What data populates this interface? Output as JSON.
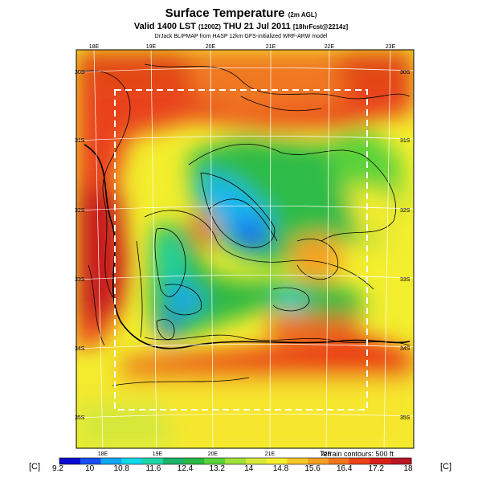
{
  "header": {
    "title": "Surface Temperature",
    "title_note": "(2m AGL)",
    "valid_main": "Valid 1400 LST",
    "valid_code": "(1200Z)",
    "valid_date": "THU 21 Jul 2011",
    "valid_fcst": "[18hrFcst@2214z]",
    "credit": "DrJack BLIPMAP from HASP 12km GFS-initialized WRF-ARW model"
  },
  "map": {
    "lon_labels_top": [
      "18E",
      "19E",
      "20E",
      "21E",
      "22E",
      "23E"
    ],
    "lon_labels_bottom": [
      "18E",
      "19E",
      "20E",
      "21E",
      "22E"
    ],
    "lat_labels_left": [
      "30S",
      "31S",
      "32S",
      "33S",
      "34S",
      "35S"
    ],
    "lat_labels_right": [
      "30S",
      "31S",
      "32S",
      "33S",
      "34S",
      "35S"
    ],
    "terrain_note": "Terrain contours: 500 ft"
  },
  "colorbar": {
    "unit": "[C]",
    "ticks": [
      "9.2",
      "10",
      "10.8",
      "11.6",
      "12.4",
      "13.2",
      "14",
      "14.8",
      "15.6",
      "16.4",
      "17.2",
      "18"
    ],
    "colors": [
      "#0a0ad2",
      "#1a4ef0",
      "#13a7f2",
      "#12d9e8",
      "#1fd6a8",
      "#1bb36a",
      "#2ab844",
      "#5ad23b",
      "#9fe03a",
      "#d6e83a",
      "#f5ee2e",
      "#f8c82a",
      "#f6a023",
      "#f2751c",
      "#ea4317",
      "#d8211a",
      "#b81622"
    ]
  }
}
